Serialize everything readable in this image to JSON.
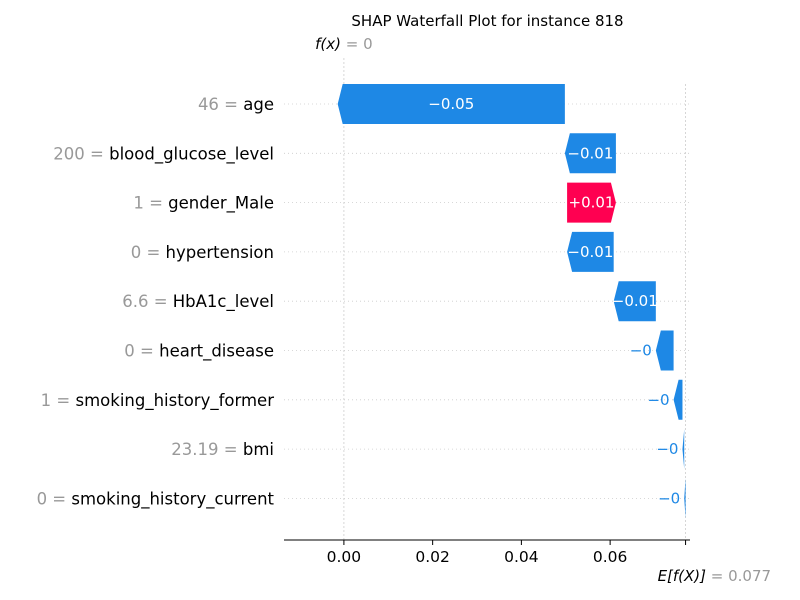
{
  "chart_data": {
    "type": "waterfall",
    "title": "SHAP Waterfall Plot for instance 818",
    "fx_label": "f(x)",
    "fx_value": "= 0",
    "base_label": "E[f(X)]",
    "base_value_text": "= 0.077",
    "base_value": 0.077,
    "final_value": 0,
    "xlim": [
      -0.0135,
      0.078
    ],
    "xticks": [
      0.0,
      0.02,
      0.04,
      0.06
    ],
    "xtick_labels": [
      "0.00",
      "0.02",
      "0.04",
      "0.06"
    ],
    "grid": "horizontal dotted",
    "features": [
      {
        "value_text": "46",
        "name": "age",
        "shap": -0.0512,
        "label": "−0.05"
      },
      {
        "value_text": "200",
        "name": "blood_glucose_level",
        "shap": -0.0115,
        "label": "−0.01"
      },
      {
        "value_text": "1",
        "name": "gender_Male",
        "shap": 0.011,
        "label": "+0.01"
      },
      {
        "value_text": "0",
        "name": "hypertension",
        "shap": -0.0105,
        "label": "−0.01"
      },
      {
        "value_text": "6.6",
        "name": "HbA1c_level",
        "shap": -0.0095,
        "label": "−0.01"
      },
      {
        "value_text": "0",
        "name": "heart_disease",
        "shap": -0.004,
        "label": "−0"
      },
      {
        "value_text": "1",
        "name": "smoking_history_former",
        "shap": -0.002,
        "label": "−0"
      },
      {
        "value_text": "23.19",
        "name": "bmi",
        "shap": -0.0004,
        "label": "−0"
      },
      {
        "value_text": "0",
        "name": "smoking_history_current",
        "shap": -0.0003,
        "label": "−0"
      }
    ],
    "colors": {
      "negative": "#1E88E5",
      "positive": "#FF0051",
      "feature_value": "#999999",
      "grid": "#cccccc",
      "axis": "#000000"
    }
  }
}
